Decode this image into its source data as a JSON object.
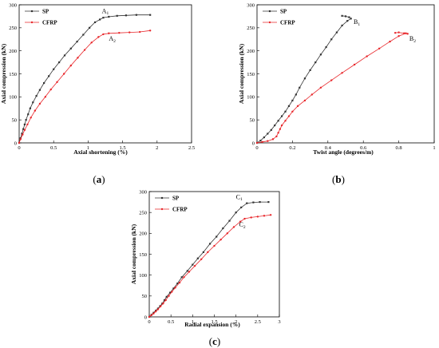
{
  "colors": {
    "sp": "#333333",
    "cfrp": "#e8262a",
    "axis": "#000000"
  },
  "panel_labels": [
    {
      "open": "(",
      "letter": "a",
      "close": ")"
    },
    {
      "open": "(",
      "letter": "b",
      "close": ")"
    },
    {
      "open": "(",
      "letter": "c",
      "close": ")"
    }
  ],
  "chart_data": [
    {
      "type": "line",
      "xlabel": "Axial shortening (%)",
      "ylabel": "Axial compression (kN)",
      "xlim": [
        0,
        2.5
      ],
      "ylim": [
        0,
        300
      ],
      "xticks": [
        "0",
        "0.5",
        "1",
        "1.5",
        "2",
        "2.5"
      ],
      "yticks": [
        "0",
        "50",
        "100",
        "150",
        "200",
        "250",
        "300"
      ],
      "legend_position": "top-left",
      "series": [
        {
          "name": "SP",
          "color": "#333333",
          "marker": "square",
          "points": [
            [
              0,
              0
            ],
            [
              0.02,
              10
            ],
            [
              0.04,
              20
            ],
            [
              0.06,
              30
            ],
            [
              0.08,
              40
            ],
            [
              0.1,
              50
            ],
            [
              0.13,
              62
            ],
            [
              0.16,
              75
            ],
            [
              0.2,
              88
            ],
            [
              0.25,
              102
            ],
            [
              0.3,
              115
            ],
            [
              0.36,
              130
            ],
            [
              0.43,
              145
            ],
            [
              0.5,
              160
            ],
            [
              0.58,
              175
            ],
            [
              0.66,
              190
            ],
            [
              0.75,
              205
            ],
            [
              0.84,
              220
            ],
            [
              0.93,
              235
            ],
            [
              1.02,
              250
            ],
            [
              1.1,
              262
            ],
            [
              1.17,
              268
            ],
            [
              1.22,
              272
            ],
            [
              1.3,
              274
            ],
            [
              1.42,
              276
            ],
            [
              1.55,
              277
            ],
            [
              1.7,
              278
            ],
            [
              1.9,
              278
            ]
          ]
        },
        {
          "name": "CFRP",
          "color": "#e8262a",
          "marker": "dot",
          "points": [
            [
              0,
              0
            ],
            [
              0.02,
              8
            ],
            [
              0.05,
              18
            ],
            [
              0.08,
              28
            ],
            [
              0.12,
              40
            ],
            [
              0.17,
              55
            ],
            [
              0.23,
              70
            ],
            [
              0.3,
              85
            ],
            [
              0.38,
              100
            ],
            [
              0.46,
              116
            ],
            [
              0.55,
              132
            ],
            [
              0.65,
              150
            ],
            [
              0.75,
              168
            ],
            [
              0.85,
              185
            ],
            [
              0.95,
              202
            ],
            [
              1.05,
              218
            ],
            [
              1.15,
              230
            ],
            [
              1.22,
              236
            ],
            [
              1.3,
              238
            ],
            [
              1.45,
              239
            ],
            [
              1.6,
              240
            ],
            [
              1.75,
              241
            ],
            [
              1.9,
              244
            ]
          ]
        }
      ],
      "annotations": [
        {
          "text": "A",
          "sub": "1",
          "x": 1.2,
          "y": 282
        },
        {
          "text": "A",
          "sub": "2",
          "x": 1.3,
          "y": 222
        }
      ]
    },
    {
      "type": "line",
      "xlabel": "Twist angle (degrees/m)",
      "ylabel": "Axial compression (kN)",
      "xlim": [
        0,
        1
      ],
      "ylim": [
        0,
        300
      ],
      "xticks": [
        "0",
        "0.2",
        "0.4",
        "0.6",
        "0.8",
        "1"
      ],
      "yticks": [
        "0",
        "50",
        "100",
        "150",
        "200",
        "250",
        "300"
      ],
      "legend_position": "top-left",
      "series": [
        {
          "name": "SP",
          "color": "#333333",
          "marker": "square",
          "points": [
            [
              0,
              0
            ],
            [
              0.02,
              5
            ],
            [
              0.04,
              12
            ],
            [
              0.06,
              20
            ],
            [
              0.08,
              28
            ],
            [
              0.1,
              38
            ],
            [
              0.12,
              48
            ],
            [
              0.14,
              58
            ],
            [
              0.16,
              68
            ],
            [
              0.18,
              80
            ],
            [
              0.2,
              92
            ],
            [
              0.22,
              105
            ],
            [
              0.24,
              120
            ],
            [
              0.27,
              140
            ],
            [
              0.3,
              158
            ],
            [
              0.33,
              175
            ],
            [
              0.36,
              192
            ],
            [
              0.39,
              208
            ],
            [
              0.42,
              225
            ],
            [
              0.45,
              240
            ],
            [
              0.48,
              255
            ],
            [
              0.51,
              265
            ],
            [
              0.53,
              270
            ],
            [
              0.52,
              273
            ],
            [
              0.5,
              275
            ],
            [
              0.48,
              276
            ]
          ]
        },
        {
          "name": "CFRP",
          "color": "#e8262a",
          "marker": "dot",
          "points": [
            [
              0,
              0
            ],
            [
              0.03,
              2
            ],
            [
              0.06,
              4
            ],
            [
              0.09,
              8
            ],
            [
              0.11,
              14
            ],
            [
              0.12,
              22
            ],
            [
              0.13,
              30
            ],
            [
              0.14,
              38
            ],
            [
              0.16,
              48
            ],
            [
              0.18,
              58
            ],
            [
              0.2,
              68
            ],
            [
              0.23,
              80
            ],
            [
              0.27,
              92
            ],
            [
              0.31,
              105
            ],
            [
              0.36,
              120
            ],
            [
              0.42,
              136
            ],
            [
              0.48,
              152
            ],
            [
              0.55,
              170
            ],
            [
              0.62,
              188
            ],
            [
              0.69,
              205
            ],
            [
              0.75,
              220
            ],
            [
              0.8,
              232
            ],
            [
              0.84,
              238
            ],
            [
              0.85,
              237
            ],
            [
              0.83,
              238
            ],
            [
              0.8,
              240
            ],
            [
              0.78,
              239
            ]
          ]
        }
      ],
      "annotations": [
        {
          "text": "B",
          "sub": "1",
          "x": 0.545,
          "y": 258
        },
        {
          "text": "B",
          "sub": "2",
          "x": 0.86,
          "y": 222
        }
      ]
    },
    {
      "type": "line",
      "xlabel": "Radial expansion (%)",
      "ylabel": "Axial compression (kN)",
      "xlim": [
        0,
        3
      ],
      "ylim": [
        0,
        300
      ],
      "xticks": [
        "0",
        "0.5",
        "1",
        "1.5",
        "2",
        "2.5",
        "3"
      ],
      "yticks": [
        "0",
        "50",
        "100",
        "150",
        "200",
        "250",
        "300"
      ],
      "legend_position": "top-left",
      "series": [
        {
          "name": "SP",
          "color": "#333333",
          "marker": "square",
          "points": [
            [
              0,
              0
            ],
            [
              0.05,
              5
            ],
            [
              0.1,
              10
            ],
            [
              0.15,
              15
            ],
            [
              0.2,
              20
            ],
            [
              0.25,
              26
            ],
            [
              0.3,
              32
            ],
            [
              0.35,
              40
            ],
            [
              0.4,
              48
            ],
            [
              0.48,
              58
            ],
            [
              0.56,
              68
            ],
            [
              0.65,
              80
            ],
            [
              0.75,
              95
            ],
            [
              0.88,
              110
            ],
            [
              1.0,
              125
            ],
            [
              1.12,
              140
            ],
            [
              1.25,
              155
            ],
            [
              1.4,
              175
            ],
            [
              1.55,
              192
            ],
            [
              1.7,
              212
            ],
            [
              1.85,
              230
            ],
            [
              2.0,
              250
            ],
            [
              2.12,
              262
            ],
            [
              2.25,
              272
            ],
            [
              2.4,
              274
            ],
            [
              2.55,
              275
            ],
            [
              2.75,
              275
            ]
          ]
        },
        {
          "name": "CFRP",
          "color": "#e8262a",
          "marker": "dot",
          "points": [
            [
              0,
              0
            ],
            [
              0.05,
              4
            ],
            [
              0.1,
              8
            ],
            [
              0.15,
              13
            ],
            [
              0.2,
              18
            ],
            [
              0.26,
              25
            ],
            [
              0.32,
              32
            ],
            [
              0.38,
              40
            ],
            [
              0.45,
              50
            ],
            [
              0.52,
              60
            ],
            [
              0.6,
              70
            ],
            [
              0.7,
              82
            ],
            [
              0.8,
              95
            ],
            [
              0.92,
              108
            ],
            [
              1.05,
              122
            ],
            [
              1.2,
              138
            ],
            [
              1.35,
              155
            ],
            [
              1.5,
              170
            ],
            [
              1.65,
              185
            ],
            [
              1.8,
              200
            ],
            [
              1.95,
              215
            ],
            [
              2.1,
              228
            ],
            [
              2.2,
              235
            ],
            [
              2.35,
              238
            ],
            [
              2.5,
              240
            ],
            [
              2.65,
              242
            ],
            [
              2.8,
              244
            ]
          ]
        }
      ],
      "annotations": [
        {
          "text": "C",
          "sub": "1",
          "x": 2.0,
          "y": 282
        },
        {
          "text": "C",
          "sub": "2",
          "x": 2.07,
          "y": 216
        }
      ]
    }
  ]
}
